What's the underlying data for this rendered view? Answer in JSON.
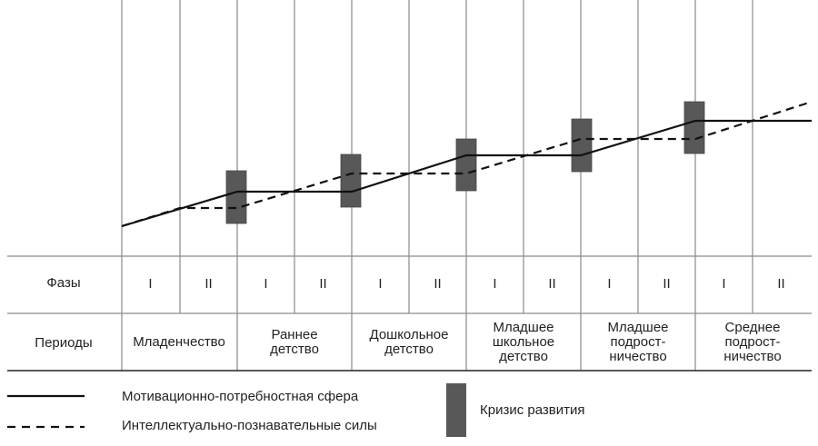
{
  "row_labels": {
    "phases": "Фазы",
    "periods": "Периоды"
  },
  "periods": [
    {
      "label": "Младенчество",
      "phases": [
        "I",
        "II"
      ]
    },
    {
      "label": "Раннее детство",
      "phases": [
        "I",
        "II"
      ]
    },
    {
      "label": "Дошкольное детство",
      "phases": [
        "I",
        "II"
      ]
    },
    {
      "label": "Младшее школьное детство",
      "phases": [
        "I",
        "II"
      ]
    },
    {
      "label": "Младшее подрост-ничество",
      "phases": [
        "I",
        "II"
      ]
    },
    {
      "label": "Среднее подрост-ничество",
      "phases": [
        "I",
        "II"
      ]
    }
  ],
  "legend": {
    "solid": "Мотивационно-потребностная сфера",
    "dashed": "Интеллектуально-познавательные силы",
    "crisis": "Кризис развития"
  },
  "colors": {
    "grid": "#8a8a8a",
    "crisis": "#585858",
    "line": "#111111"
  }
}
